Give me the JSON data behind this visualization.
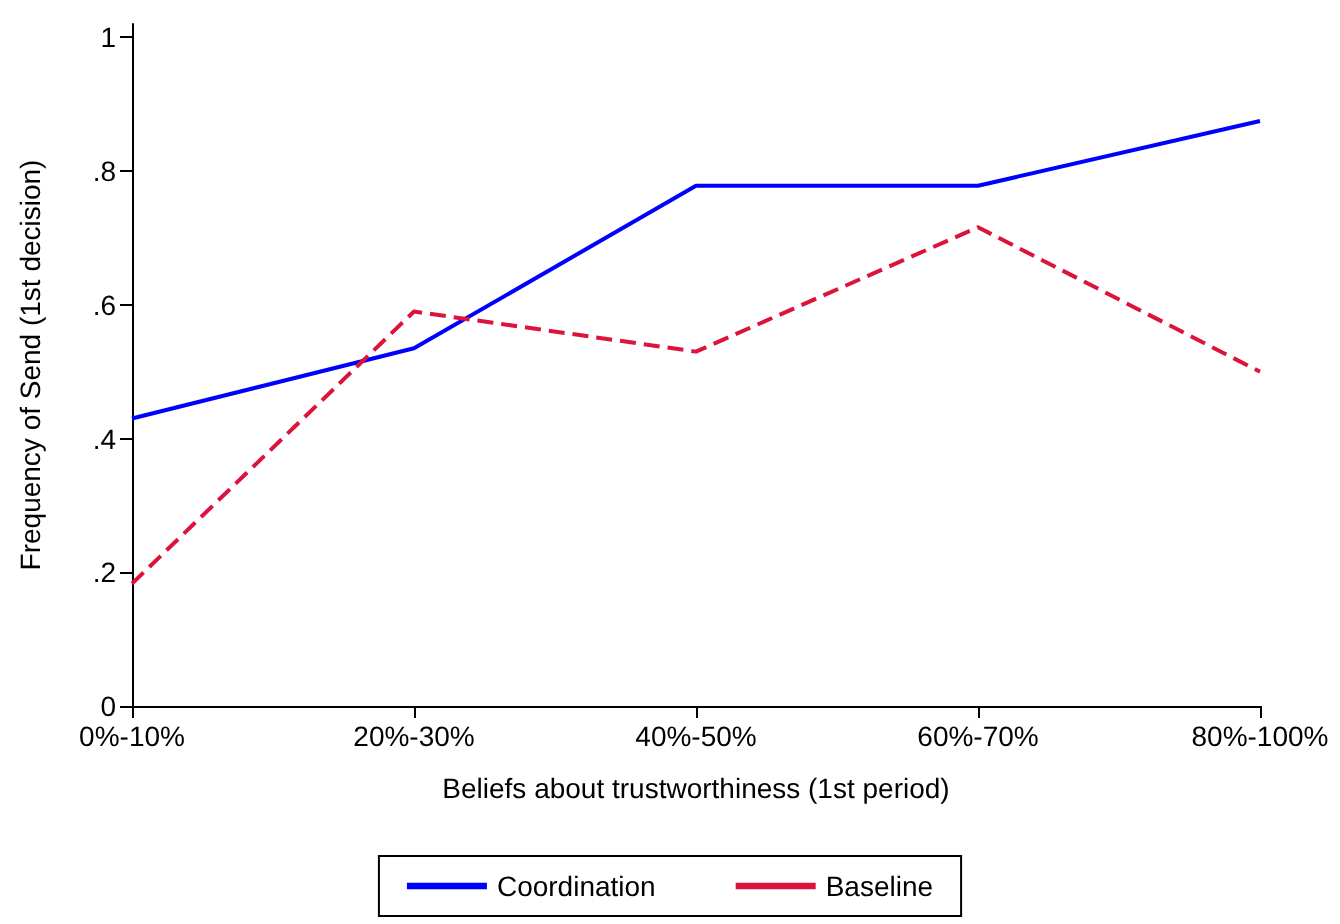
{
  "chart_data": {
    "type": "line",
    "xlabel": "Beliefs about trustworthiness (1st period)",
    "ylabel": "Frequency of Send (1st decision)",
    "categories": [
      "0%-10%",
      "20%-30%",
      "40%-50%",
      "60%-70%",
      "80%-100%"
    ],
    "series": [
      {
        "name": "Coordination",
        "color": "#0000ff",
        "line_style": "solid",
        "values": [
          0.43,
          0.535,
          0.778,
          0.778,
          0.875
        ]
      },
      {
        "name": "Baseline",
        "color": "#dc143c",
        "line_style": "dashed",
        "values": [
          0.183,
          0.59,
          0.53,
          0.716,
          0.5
        ]
      }
    ],
    "ylim": [
      0,
      1.02
    ],
    "yticks": [
      0,
      {
        "value": 0.2,
        "label": ".2"
      },
      {
        "value": 0.4,
        "label": ".4"
      },
      {
        "value": 0.6,
        "label": ".6"
      },
      {
        "value": 0.8,
        "label": ".8"
      },
      1
    ],
    "grid": false,
    "legend": "bottom",
    "marker": "none"
  }
}
